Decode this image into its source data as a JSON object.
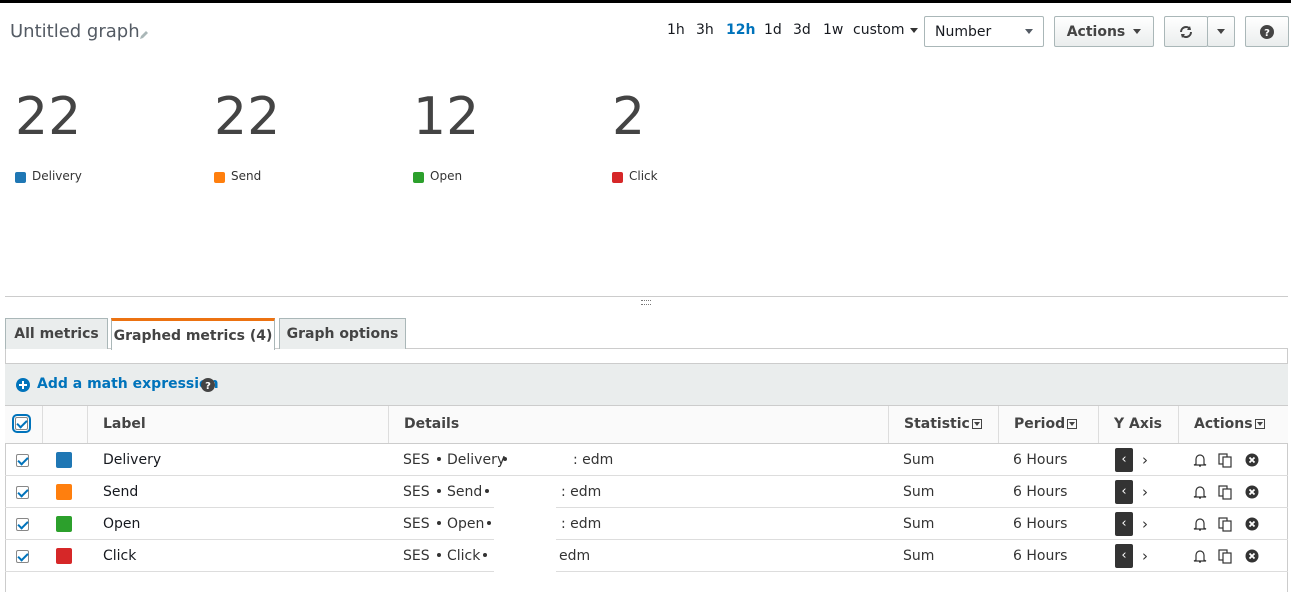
{
  "header": {
    "title": "Untitled graph",
    "ranges": [
      "1h",
      "3h",
      "12h",
      "1d",
      "3d",
      "1w"
    ],
    "active_range": 2,
    "custom": "custom",
    "view": "Number",
    "actions": "Actions"
  },
  "numbers": [
    {
      "value": 22,
      "label": "Delivery",
      "color": "#1f77b4"
    },
    {
      "value": 22,
      "label": "Send",
      "color": "#ff7f0e"
    },
    {
      "value": 12,
      "label": "Open",
      "color": "#2ca02c"
    },
    {
      "value": 2,
      "label": "Click",
      "color": "#d62728"
    }
  ],
  "tabs": [
    "All metrics",
    "Graphed metrics (4)",
    "Graph options"
  ],
  "active_tab": 1,
  "math_expression": "Add a math expression",
  "table": {
    "columns": [
      "Label",
      "Details",
      "Statistic",
      "Period",
      "Y Axis",
      "Actions"
    ],
    "rows": [
      {
        "label": "Delivery",
        "color": "#1f77b4",
        "details": [
          "SES",
          "Delivery",
          ": edm"
        ],
        "statistic": "Sum",
        "period": "6 Hours"
      },
      {
        "label": "Send",
        "color": "#ff7f0e",
        "details": [
          "SES",
          "Send",
          ": edm"
        ],
        "statistic": "Sum",
        "period": "6 Hours"
      },
      {
        "label": "Open",
        "color": "#2ca02c",
        "details": [
          "SES",
          "Open",
          ": edm"
        ],
        "statistic": "Sum",
        "period": "6 Hours"
      },
      {
        "label": "Click",
        "color": "#d62728",
        "details": [
          "SES",
          "Click",
          "edm"
        ],
        "statistic": "Sum",
        "period": "6 Hours"
      }
    ]
  }
}
